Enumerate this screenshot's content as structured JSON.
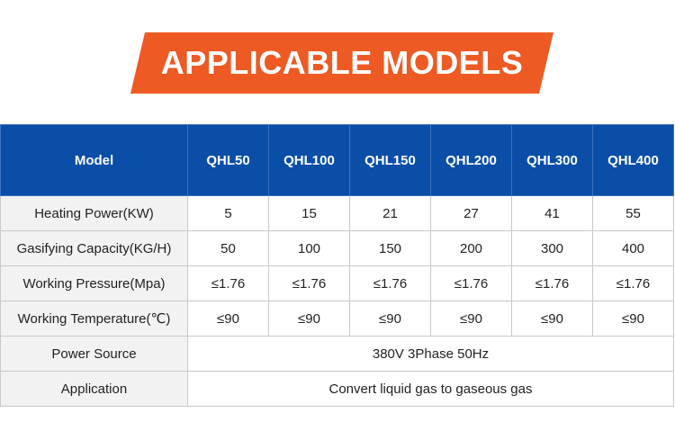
{
  "title": "APPLICABLE MODELS",
  "colors": {
    "banner": "#ee5a24",
    "header": "#0b4ea8",
    "label_bg": "#f2f2f2"
  },
  "table": {
    "header": [
      "Model",
      "QHL50",
      "QHL100",
      "QHL150",
      "QHL200",
      "QHL300",
      "QHL400"
    ],
    "rows": [
      {
        "label": "Heating Power(KW)",
        "values": [
          "5",
          "15",
          "21",
          "27",
          "41",
          "55"
        ]
      },
      {
        "label": "Gasifying Capacity(KG/H)",
        "values": [
          "50",
          "100",
          "150",
          "200",
          "300",
          "400"
        ]
      },
      {
        "label": "Working Pressure(Mpa)",
        "values": [
          "≤1.76",
          "≤1.76",
          "≤1.76",
          "≤1.76",
          "≤1.76",
          "≤1.76"
        ]
      },
      {
        "label": "Working Temperature(℃)",
        "values": [
          "≤90",
          "≤90",
          "≤90",
          "≤90",
          "≤90",
          "≤90"
        ]
      },
      {
        "label": "Power Source",
        "span_value": "380V 3Phase 50Hz"
      },
      {
        "label": "Application",
        "span_value": "Convert liquid gas to gaseous gas"
      }
    ]
  }
}
